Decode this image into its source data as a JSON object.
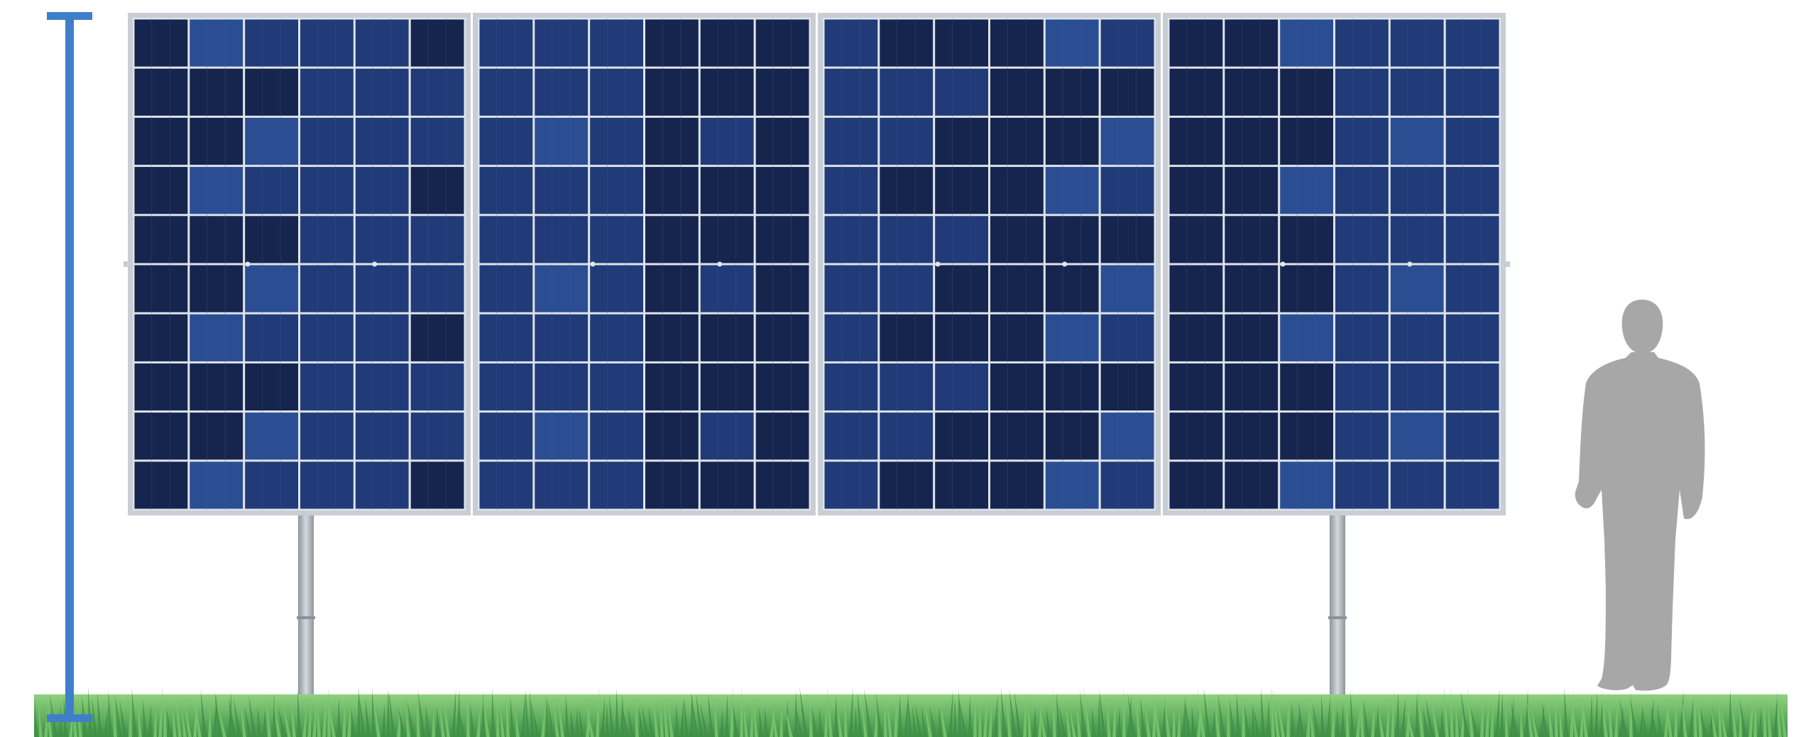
{
  "scene": {
    "panel_count": 4,
    "cell_columns_per_panel": 6,
    "cell_rows_per_panel": 10,
    "post_count": 2,
    "colors": {
      "background": "#ffffff",
      "cell_dark": "#16254e",
      "cell_mid": "#213b78",
      "cell_light": "#2b4e93",
      "panel_frame": "#c9ced4",
      "cell_grid_line": "#dfe4ea",
      "post": "#a9afb6",
      "person": "#a7a7a7",
      "height_marker": "#3f7fca",
      "grass_light": "#79c76f",
      "grass_dark": "#3f9148"
    },
    "icons": {
      "height_marker": "height-marker-icon",
      "person": "person-silhouette-icon",
      "grass": "grass-icon"
    }
  }
}
